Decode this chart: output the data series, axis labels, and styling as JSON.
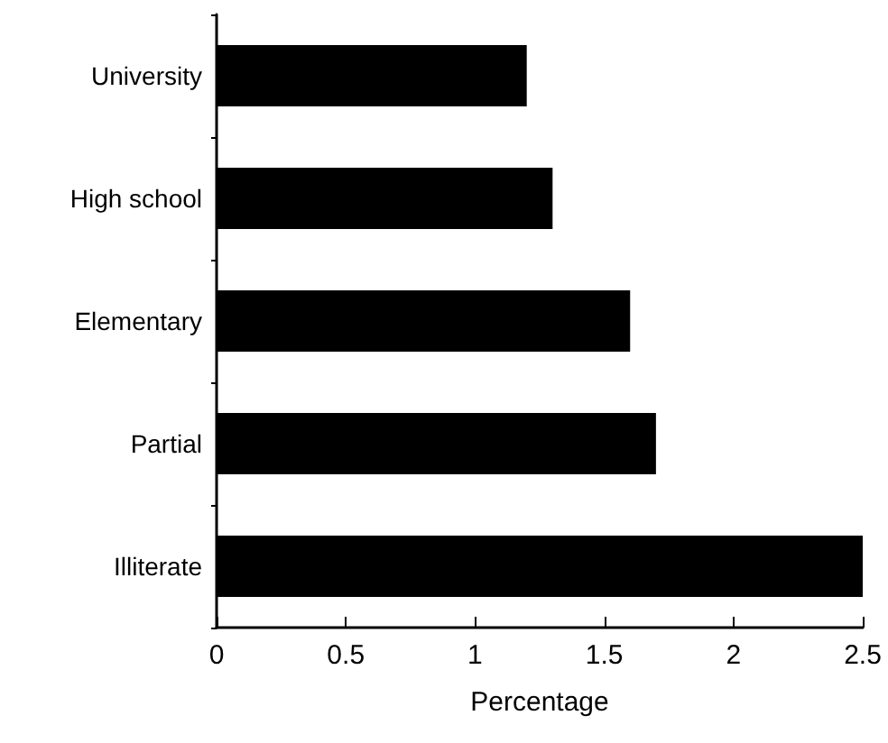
{
  "chart_data": {
    "type": "bar",
    "orientation": "horizontal",
    "xlabel": "Percentage",
    "categories": [
      "University",
      "High school",
      "Elementary",
      "Partial",
      "Illiterate"
    ],
    "values": [
      1.2,
      1.3,
      1.6,
      1.7,
      2.5
    ],
    "color": "#000000",
    "xlim": [
      0,
      2.5
    ],
    "xticks": [
      0,
      0.5,
      1,
      1.5,
      2,
      2.5
    ],
    "grid": false
  }
}
